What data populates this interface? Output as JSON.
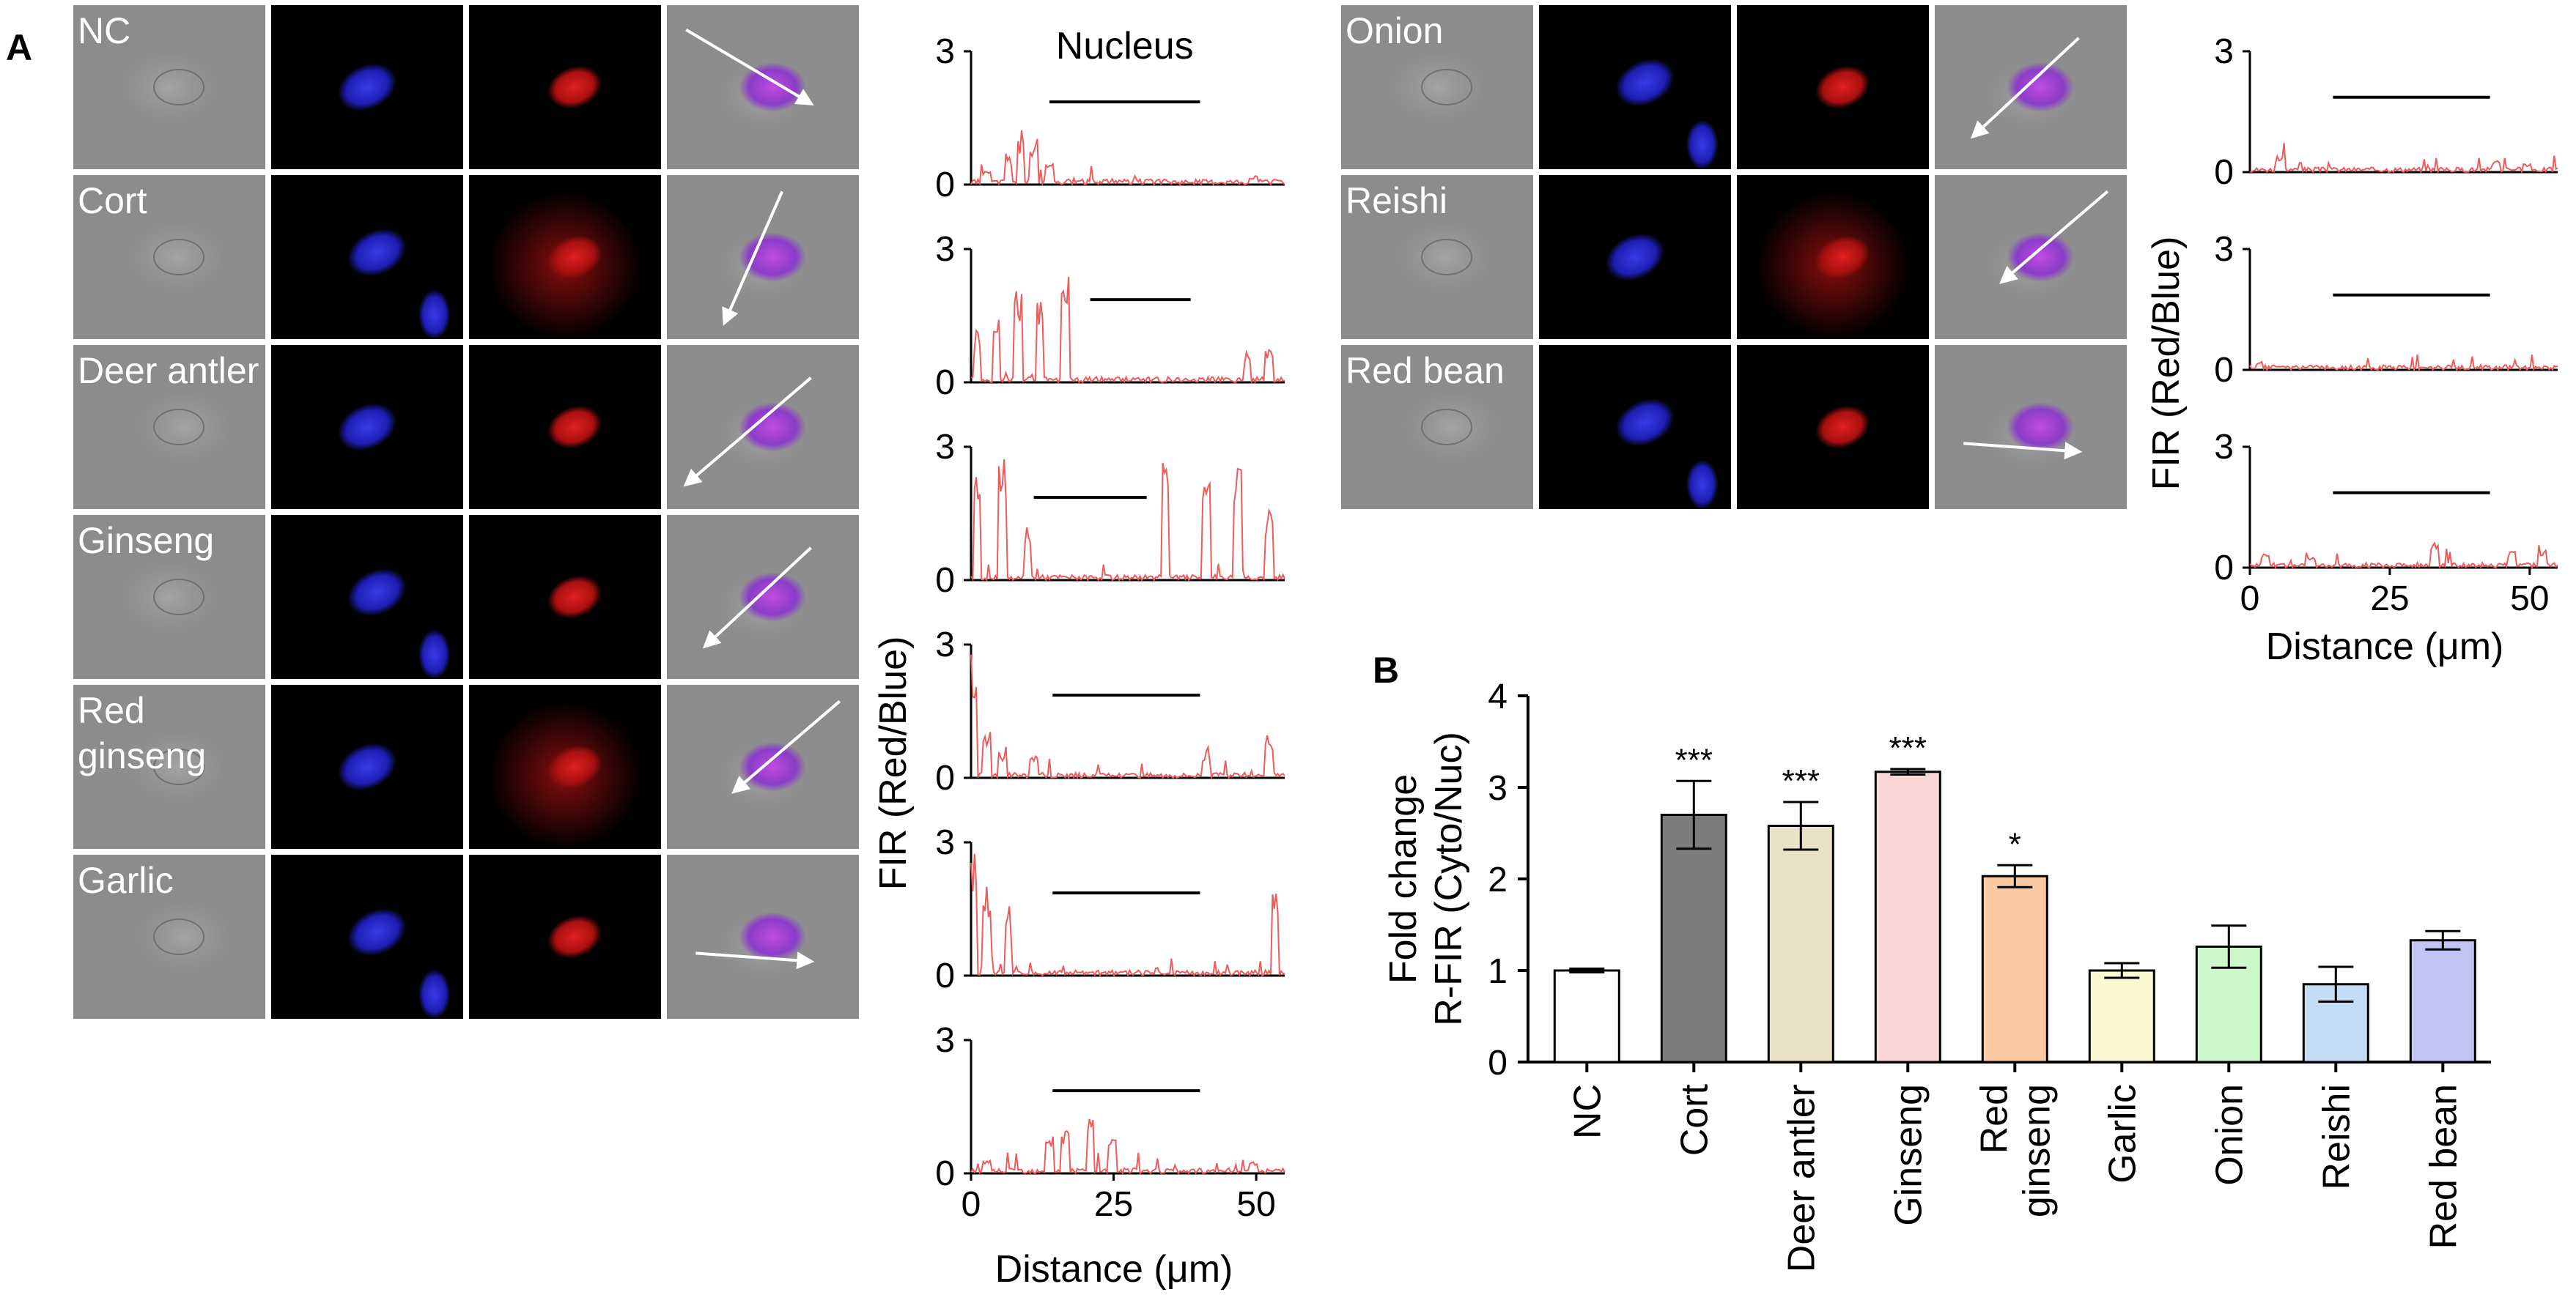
{
  "panel_labels": {
    "a": "A",
    "b": "B"
  },
  "nucleus_label": "Nucleus",
  "colors": {
    "profile_line": "#f05a5a",
    "dic_bg": "#8c8c8c",
    "blue_stain": "#2323d2",
    "red_stain": "#c81414",
    "overlay_mix": "#b23cd2"
  },
  "left_conditions": [
    "NC",
    "Cort",
    "Deer antler",
    "Ginseng",
    "Red ginseng",
    "Garlic"
  ],
  "right_conditions": [
    "Onion",
    "Reishi",
    "Red bean"
  ],
  "condition_label_lines": {
    "Red ginseng": [
      "Red",
      "ginseng"
    ]
  },
  "line_profile_axes": {
    "y_ticks": [
      "3",
      "0"
    ],
    "x_ticks": [
      "0",
      "25",
      "50"
    ],
    "x_label": "Distance (μm)",
    "y_label": "FIR (Red/Blue)",
    "x_range_um": [
      0,
      55
    ],
    "y_range": [
      0,
      3
    ]
  },
  "chart_data": {
    "type": "bar",
    "title": "",
    "ylabel_lines": [
      "Fold change",
      "R-FIR (Cyto/Nuc)"
    ],
    "xlabel": "",
    "ylim": [
      0,
      4
    ],
    "yticks": [
      "0",
      "1",
      "2",
      "3",
      "4"
    ],
    "categories": [
      "NC",
      "Cort",
      "Deer antler",
      "Ginseng",
      "Red ginseng",
      "Garlic",
      "Onion",
      "Reishi",
      "Red bean"
    ],
    "category_label_lines": [
      [
        "NC"
      ],
      [
        "Cort"
      ],
      [
        "Deer antler"
      ],
      [
        "Ginseng"
      ],
      [
        "Red",
        "ginseng"
      ],
      [
        "Garlic"
      ],
      [
        "Onion"
      ],
      [
        "Reishi"
      ],
      [
        "Red bean"
      ]
    ],
    "values": [
      1.0,
      2.7,
      2.58,
      3.17,
      2.03,
      1.0,
      1.26,
      0.85,
      1.33
    ],
    "errors": [
      0.02,
      0.37,
      0.26,
      0.03,
      0.12,
      0.08,
      0.23,
      0.19,
      0.1
    ],
    "significance": [
      "",
      "***",
      "***",
      "***",
      "*",
      "",
      "",
      "",
      ""
    ],
    "bar_colors": [
      "#ffffff",
      "#7c7c7c",
      "#e9e2c4",
      "#fad6d6",
      "#fbcba3",
      "#fafad2",
      "#cbf7cb",
      "#c3ddf6",
      "#c3c3f4"
    ]
  }
}
